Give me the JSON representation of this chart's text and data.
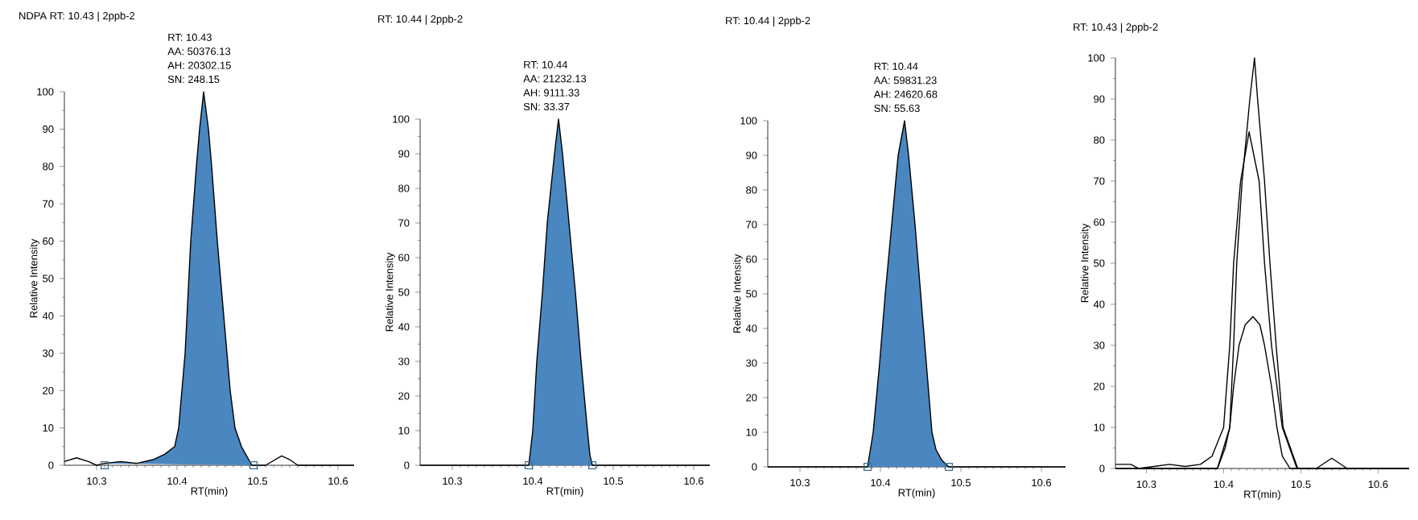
{
  "chart_data": [
    {
      "type": "area",
      "title": "NDPA  RT: 10.43 | 2ppb-2",
      "xlabel": "RT(min)",
      "ylabel": "Relative Intensity",
      "xlim": [
        10.26,
        10.62
      ],
      "xticks": [
        10.3,
        10.4,
        10.5,
        10.6
      ],
      "ylim": [
        0,
        100
      ],
      "yticks": [
        0,
        10,
        20,
        30,
        40,
        50,
        60,
        70,
        80,
        90,
        100
      ],
      "annotations": [
        "RT: 10.43",
        "AA: 50376.13",
        "AH: 20302.15",
        "SN: 248.15"
      ],
      "series": [
        {
          "type": "area",
          "color": "#4a86c0",
          "x": [
            10.31,
            10.33,
            10.35,
            10.37,
            10.385,
            10.397,
            10.402,
            10.41,
            10.417,
            10.424,
            10.428,
            10.433,
            10.439,
            10.443,
            10.45,
            10.458,
            10.466,
            10.472,
            10.48,
            10.493
          ],
          "values": [
            0.5,
            1,
            0.5,
            1.5,
            3,
            5,
            10,
            30,
            60,
            80,
            90,
            100,
            90,
            80,
            60,
            40,
            20,
            10,
            5,
            0
          ]
        },
        {
          "type": "line",
          "color": "#000000",
          "x": [
            10.26,
            10.275,
            10.29,
            10.3,
            10.31,
            10.33,
            10.35,
            10.37,
            10.385,
            10.397,
            10.402,
            10.41,
            10.417,
            10.424,
            10.428,
            10.433,
            10.439,
            10.443,
            10.45,
            10.458,
            10.466,
            10.472,
            10.48,
            10.493,
            10.51,
            10.53,
            10.54,
            10.55,
            10.62
          ],
          "values": [
            1,
            2,
            1,
            0,
            0.5,
            1,
            0.5,
            1.5,
            3,
            5,
            10,
            30,
            60,
            80,
            90,
            100,
            90,
            80,
            60,
            40,
            20,
            10,
            5,
            0,
            0,
            2.5,
            1.5,
            0,
            0
          ]
        },
        {
          "type": "scatter",
          "marker": "square",
          "color": "#3b6e8f",
          "x": [
            10.31,
            10.495
          ],
          "values": [
            0,
            0
          ]
        }
      ]
    },
    {
      "type": "area",
      "title": "RT: 10.44 | 2ppb-2",
      "xlabel": "RT(min)",
      "ylabel": "Relative Intensity",
      "xlim": [
        10.26,
        10.62
      ],
      "xticks": [
        10.3,
        10.4,
        10.5,
        10.6
      ],
      "ylim": [
        0,
        100
      ],
      "yticks": [
        0,
        10,
        20,
        30,
        40,
        50,
        60,
        70,
        80,
        90,
        100
      ],
      "annotations": [
        "RT: 10.44",
        "AA: 21232.13",
        "AH: 9111.33",
        "SN: 33.37"
      ],
      "series": [
        {
          "type": "area",
          "color": "#4a86c0",
          "x": [
            10.395,
            10.4,
            10.405,
            10.412,
            10.418,
            10.427,
            10.432,
            10.437,
            10.445,
            10.453,
            10.46,
            10.468,
            10.471,
            10.474
          ],
          "values": [
            0,
            10,
            30,
            50,
            70,
            90,
            100,
            90,
            70,
            50,
            30,
            10,
            3,
            0
          ]
        },
        {
          "type": "line",
          "color": "#000000",
          "x": [
            10.26,
            10.395,
            10.4,
            10.405,
            10.412,
            10.418,
            10.427,
            10.432,
            10.437,
            10.445,
            10.453,
            10.46,
            10.468,
            10.471,
            10.474,
            10.62
          ],
          "values": [
            0,
            0,
            10,
            30,
            50,
            70,
            90,
            100,
            90,
            70,
            50,
            30,
            10,
            3,
            0,
            0
          ]
        },
        {
          "type": "scatter",
          "marker": "square",
          "color": "#3b6e8f",
          "x": [
            10.395,
            10.474
          ],
          "values": [
            0,
            0
          ]
        }
      ]
    },
    {
      "type": "area",
      "title": "RT: 10.44 | 2ppb-2",
      "xlabel": "RT(min)",
      "ylabel": "Relative Intensity",
      "xlim": [
        10.26,
        10.63
      ],
      "xticks": [
        10.3,
        10.4,
        10.5,
        10.6
      ],
      "ylim": [
        0,
        100
      ],
      "yticks": [
        0,
        10,
        20,
        30,
        40,
        50,
        60,
        70,
        80,
        90,
        100
      ],
      "annotations": [
        "RT: 10.44",
        "AA: 59831.23",
        "AH: 24620.68",
        "SN: 55.63"
      ],
      "series": [
        {
          "type": "area",
          "color": "#4a86c0",
          "x": [
            10.384,
            10.391,
            10.399,
            10.406,
            10.414,
            10.422,
            10.43,
            10.435,
            10.443,
            10.45,
            10.457,
            10.464,
            10.469,
            10.476,
            10.485
          ],
          "values": [
            0,
            10,
            30,
            50,
            70,
            90,
            100,
            90,
            70,
            50,
            30,
            10,
            5,
            2,
            0
          ]
        },
        {
          "type": "line",
          "color": "#000000",
          "x": [
            10.26,
            10.384,
            10.391,
            10.399,
            10.406,
            10.414,
            10.422,
            10.43,
            10.435,
            10.443,
            10.45,
            10.457,
            10.464,
            10.469,
            10.476,
            10.485,
            10.63
          ],
          "values": [
            0,
            0,
            10,
            30,
            50,
            70,
            90,
            100,
            90,
            70,
            50,
            30,
            10,
            5,
            2,
            0,
            0
          ]
        },
        {
          "type": "scatter",
          "marker": "square",
          "color": "#3b6e8f",
          "x": [
            10.384,
            10.485
          ],
          "values": [
            0,
            0
          ]
        }
      ]
    },
    {
      "type": "line",
      "title": "RT: 10.43 | 2ppb-2",
      "xlabel": "RT(min)",
      "ylabel": "Relative Intensity",
      "xlim": [
        10.26,
        10.64
      ],
      "xticks": [
        10.3,
        10.4,
        10.5,
        10.6
      ],
      "ylim": [
        0,
        100
      ],
      "yticks": [
        0,
        10,
        20,
        30,
        40,
        50,
        60,
        70,
        80,
        90,
        100
      ],
      "series": [
        {
          "color": "#000000",
          "x": [
            10.26,
            10.392,
            10.408,
            10.413,
            10.417,
            10.424,
            10.434,
            10.44,
            10.444,
            10.453,
            10.46,
            10.468,
            10.477,
            10.496,
            10.64
          ],
          "values": [
            0,
            0,
            10,
            30,
            50,
            70,
            90,
            100,
            90,
            70,
            50,
            30,
            10,
            0,
            0
          ]
        },
        {
          "color": "#000000",
          "x": [
            10.26,
            10.28,
            10.29,
            10.31,
            10.33,
            10.35,
            10.37,
            10.385,
            10.4,
            10.408,
            10.413,
            10.422,
            10.433,
            10.446,
            10.453,
            10.462,
            10.476,
            10.495,
            10.52,
            10.54,
            10.56,
            10.64
          ],
          "values": [
            1,
            1,
            0,
            0.5,
            1,
            0.5,
            1,
            3,
            10,
            30,
            50,
            70,
            82,
            70,
            50,
            30,
            10,
            0,
            0,
            2.5,
            0,
            0
          ]
        },
        {
          "color": "#000000",
          "x": [
            10.26,
            10.392,
            10.402,
            10.408,
            10.413,
            10.42,
            10.428,
            10.438,
            10.447,
            10.453,
            10.462,
            10.469,
            10.476,
            10.486,
            10.64
          ],
          "values": [
            0,
            0,
            5,
            10,
            20,
            30,
            35,
            37,
            35,
            30,
            20,
            10,
            3,
            0,
            0
          ]
        }
      ]
    }
  ]
}
